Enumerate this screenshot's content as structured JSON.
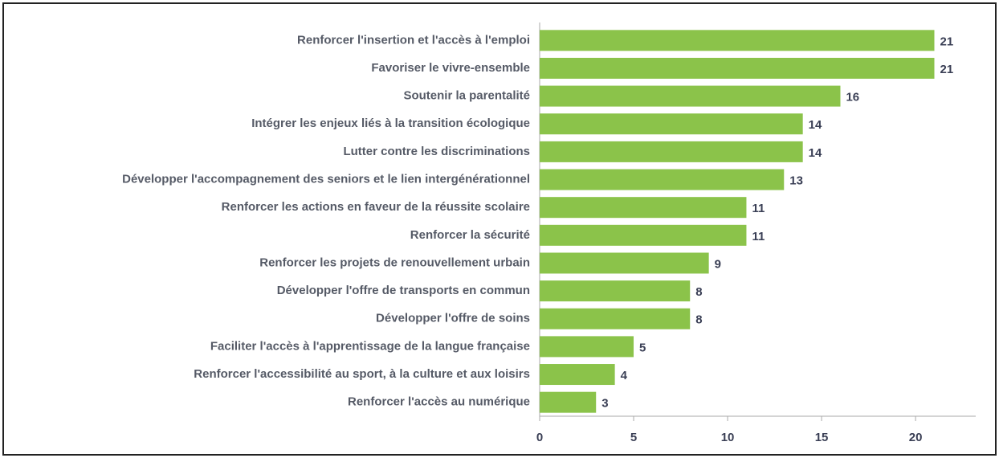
{
  "chart_data": {
    "type": "barh",
    "categories": [
      "Renforcer l'insertion et l'accès à l'emploi",
      "Favoriser le vivre-ensemble",
      "Soutenir la parentalité",
      "Intégrer les enjeux liés à la transition écologique",
      "Lutter contre les discriminations",
      "Développer l'accompagnement des seniors et le lien intergénérationnel",
      "Renforcer les actions en faveur de la réussite scolaire",
      "Renforcer la sécurité",
      "Renforcer les projets de renouvellement urbain",
      "Développer l'offre de transports en commun",
      "Développer l'offre de soins",
      "Faciliter l'accès à l'apprentissage de la langue française",
      "Renforcer l'accessibilité au sport, à la culture et aux loisirs",
      "Renforcer l'accès au numérique"
    ],
    "values": [
      21,
      21,
      16,
      14,
      14,
      13,
      11,
      11,
      9,
      8,
      8,
      5,
      4,
      3
    ],
    "color": "#8bc34a",
    "xlim": [
      0,
      23.2
    ],
    "xticks": [
      0,
      5,
      10,
      15,
      20
    ]
  }
}
